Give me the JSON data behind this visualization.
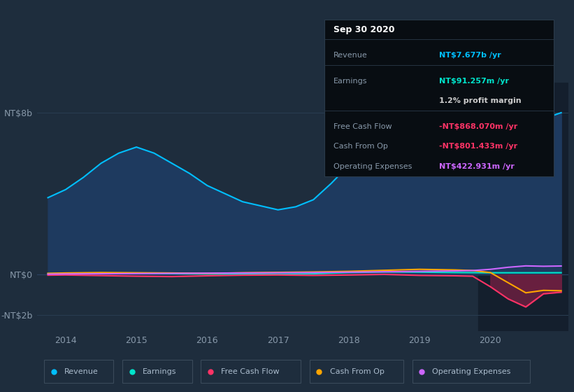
{
  "bg_color": "#1e2d3d",
  "plot_bg_color": "#1e2d3d",
  "highlight_bg": "#162030",
  "yticks": [
    "NT$8b",
    "NT$0",
    "-NT$2b"
  ],
  "ytick_vals": [
    8000000000,
    0,
    -2000000000
  ],
  "ylim": [
    -2800000000,
    9500000000
  ],
  "xlim": [
    2013.6,
    2021.1
  ],
  "xtick_vals": [
    2014,
    2015,
    2016,
    2017,
    2018,
    2019,
    2020
  ],
  "revenue_color": "#00bfff",
  "earnings_color": "#00e5cc",
  "fcf_color": "#ff3366",
  "cashfromop_color": "#ffa500",
  "opex_color": "#cc66ff",
  "tooltip_title": "Sep 30 2020",
  "tooltip_revenue_label": "Revenue",
  "tooltip_revenue_val": "NT$7.677b /yr",
  "tooltip_earnings_label": "Earnings",
  "tooltip_earnings_val": "NT$91.257m /yr",
  "tooltip_margin_val": "1.2% profit margin",
  "tooltip_fcf_label": "Free Cash Flow",
  "tooltip_fcf_val": "-NT$868.070m /yr",
  "tooltip_cashop_label": "Cash From Op",
  "tooltip_cashop_val": "-NT$801.433m /yr",
  "tooltip_opex_label": "Operating Expenses",
  "tooltip_opex_val": "NT$422.931m /yr",
  "revenue_x": [
    2013.75,
    2014.0,
    2014.25,
    2014.5,
    2014.75,
    2015.0,
    2015.25,
    2015.5,
    2015.75,
    2016.0,
    2016.25,
    2016.5,
    2016.75,
    2017.0,
    2017.25,
    2017.5,
    2017.75,
    2018.0,
    2018.25,
    2018.5,
    2018.75,
    2019.0,
    2019.25,
    2019.5,
    2019.75,
    2020.0,
    2020.25,
    2020.5,
    2020.75,
    2021.0
  ],
  "revenue_y": [
    3800000000,
    4200000000,
    4800000000,
    5500000000,
    6000000000,
    6300000000,
    6000000000,
    5500000000,
    5000000000,
    4400000000,
    4000000000,
    3600000000,
    3400000000,
    3200000000,
    3350000000,
    3700000000,
    4500000000,
    5400000000,
    6100000000,
    6600000000,
    6900000000,
    7100000000,
    6950000000,
    6850000000,
    6750000000,
    6700000000,
    6900000000,
    7300000000,
    7700000000,
    8000000000
  ],
  "earnings_x": [
    2013.75,
    2014.0,
    2014.5,
    2015.0,
    2015.5,
    2016.0,
    2016.5,
    2017.0,
    2017.5,
    2018.0,
    2018.5,
    2019.0,
    2019.5,
    2019.75,
    2020.0,
    2020.5,
    2020.75,
    2021.0
  ],
  "earnings_y": [
    50000000,
    60000000,
    75000000,
    70000000,
    45000000,
    30000000,
    20000000,
    15000000,
    40000000,
    100000000,
    130000000,
    120000000,
    100000000,
    95000000,
    90000000,
    90000000,
    90000000,
    92000000
  ],
  "fcf_x": [
    2013.75,
    2014.0,
    2014.5,
    2015.0,
    2015.5,
    2016.0,
    2016.5,
    2017.0,
    2017.5,
    2018.0,
    2018.5,
    2019.0,
    2019.5,
    2019.75,
    2020.0,
    2020.25,
    2020.5,
    2020.75,
    2021.0
  ],
  "fcf_y": [
    -30000000,
    -20000000,
    -50000000,
    -80000000,
    -100000000,
    -60000000,
    -30000000,
    -20000000,
    -40000000,
    -20000000,
    10000000,
    -40000000,
    -60000000,
    -80000000,
    -600000000,
    -1200000000,
    -1600000000,
    -950000000,
    -870000000
  ],
  "cashop_x": [
    2013.75,
    2014.0,
    2014.5,
    2015.0,
    2015.5,
    2016.0,
    2016.5,
    2017.0,
    2017.5,
    2018.0,
    2018.5,
    2019.0,
    2019.5,
    2019.75,
    2020.0,
    2020.25,
    2020.5,
    2020.75,
    2021.0
  ],
  "cashop_y": [
    60000000,
    80000000,
    100000000,
    90000000,
    80000000,
    60000000,
    90000000,
    110000000,
    130000000,
    160000000,
    210000000,
    260000000,
    230000000,
    200000000,
    100000000,
    -400000000,
    -900000000,
    -780000000,
    -800000000
  ],
  "opex_x": [
    2013.75,
    2014.0,
    2014.5,
    2015.0,
    2015.5,
    2016.0,
    2016.5,
    2017.0,
    2017.5,
    2018.0,
    2018.5,
    2019.0,
    2019.5,
    2019.75,
    2020.0,
    2020.25,
    2020.5,
    2020.75,
    2021.0
  ],
  "opex_y": [
    20000000,
    30000000,
    40000000,
    50000000,
    60000000,
    70000000,
    80000000,
    90000000,
    100000000,
    120000000,
    140000000,
    160000000,
    180000000,
    200000000,
    260000000,
    360000000,
    430000000,
    410000000,
    423000000
  ],
  "highlight_x_start": 2019.83,
  "legend_items": [
    "Revenue",
    "Earnings",
    "Free Cash Flow",
    "Cash From Op",
    "Operating Expenses"
  ],
  "legend_colors": [
    "#00bfff",
    "#00e5cc",
    "#ff3366",
    "#ffa500",
    "#cc66ff"
  ]
}
